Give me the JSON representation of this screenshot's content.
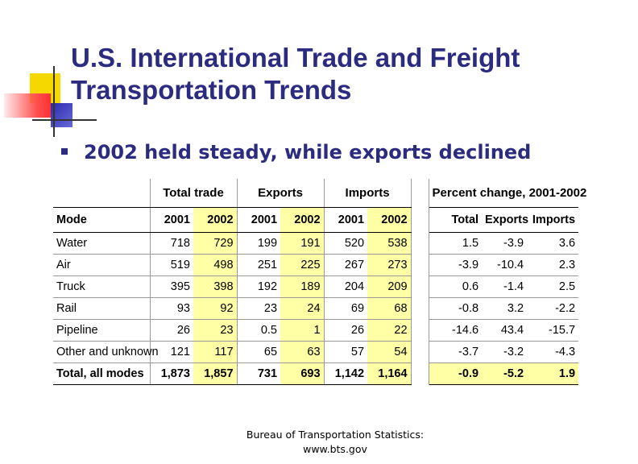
{
  "slide": {
    "title": "U.S. International Trade and Freight Transportation Trends",
    "bullet": "2002 held steady, while exports declined",
    "source_line1": "Bureau of Transportation Statistics:",
    "source_line2": "www.bts.gov"
  },
  "table": {
    "groups": {
      "total_trade": "Total trade",
      "exports": "Exports",
      "imports": "Imports",
      "percent_change": "Percent change, 2001-2002"
    },
    "headers": [
      "Mode",
      "2001",
      "2002",
      "2001",
      "2002",
      "2001",
      "2002",
      "Total",
      "Exports",
      "Imports"
    ],
    "rows": [
      [
        "Water",
        "718",
        "729",
        "199",
        "191",
        "520",
        "538",
        "1.5",
        "-3.9",
        "3.6"
      ],
      [
        "Air",
        "519",
        "498",
        "251",
        "225",
        "267",
        "273",
        "-3.9",
        "-10.4",
        "2.3"
      ],
      [
        "Truck",
        "395",
        "398",
        "192",
        "189",
        "204",
        "209",
        "0.6",
        "-1.4",
        "2.5"
      ],
      [
        "Rail",
        "93",
        "92",
        "23",
        "24",
        "69",
        "68",
        "-0.8",
        "3.2",
        "-2.2"
      ],
      [
        "Pipeline",
        "26",
        "23",
        "0.5",
        "1",
        "26",
        "22",
        "-14.6",
        "43.4",
        "-15.7"
      ],
      [
        "Other and unknown",
        "121",
        "117",
        "65",
        "63",
        "57",
        "54",
        "-3.7",
        "-3.2",
        "-4.3"
      ]
    ],
    "total_row": [
      "Total, all modes",
      "1,873",
      "1,857",
      "731",
      "693",
      "1,142",
      "1,164",
      "-0.9",
      "-5.2",
      "1.9"
    ]
  }
}
